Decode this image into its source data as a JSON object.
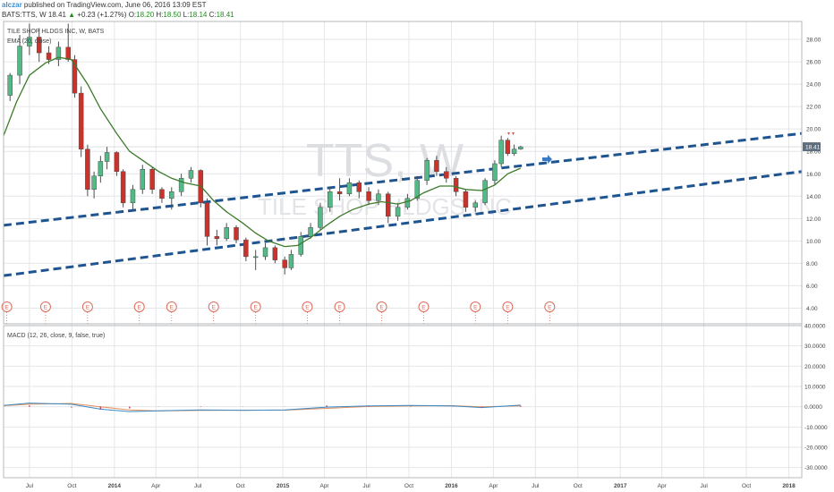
{
  "header": {
    "user": "alczar",
    "published_text": "published on TradingView.com, June 06, 2016 13:09 EST",
    "symbol": "BATS:TTS, W",
    "last": "18.41",
    "change_arrow": "▲",
    "change": "+0.23 (+1.27%)",
    "o_label": "O:",
    "o": "18.20",
    "h_label": "H:",
    "h": "18.50",
    "l_label": "L:",
    "l": "18.14",
    "c_label": "C:",
    "c": "18.41"
  },
  "main": {
    "series_title": "TILE SHOP HLDGS INC, W, BATS",
    "ema_label": "EMA (20, close)",
    "watermark_big": "TTS, W",
    "watermark_small": "TILE SHOP HLDGS INC",
    "price_label": "18.41",
    "earnings_label": "E",
    "colors": {
      "up": "#53b987",
      "down": "#c9332b",
      "wick": "#4d4d4d",
      "ema": "#3d7a2a",
      "channel": "#1e5590",
      "price_tag": "#5e6e7e",
      "macd": "#3a8ac4",
      "signal": "#e4905a",
      "hist": "#c0395b",
      "earnings": "#dd6b5a"
    }
  },
  "macd": {
    "label": "MACD (12, 26, close, 9, false, true)"
  },
  "chart_data": {
    "type": "candlestick",
    "title": "TILE SHOP HLDGS INC, W, BATS",
    "price_axis": {
      "ticks": [
        "28.00",
        "26.00",
        "24.00",
        "22.00",
        "20.00",
        "18.00",
        "16.00",
        "14.00",
        "12.00",
        "10.00",
        "8.00",
        "6.00",
        "4.00"
      ],
      "range": [
        2.6,
        29.6
      ]
    },
    "macd_axis": {
      "ticks": [
        "40.0000",
        "30.0000",
        "20.0000",
        "10.0000",
        "0.0000",
        "-10.0000",
        "-20.0000",
        "-30.0000"
      ],
      "range": [
        -35,
        40
      ]
    },
    "time_axis": {
      "labels": [
        "Jul",
        "Oct",
        "2014",
        "Apr",
        "Jul",
        "Oct",
        "2015",
        "Apr",
        "Jul",
        "Oct",
        "2016",
        "Apr",
        "Jul",
        "Oct",
        "2017",
        "Apr",
        "Jul",
        "Oct",
        "2018"
      ],
      "range": [
        "2013-05-06",
        "2018-01-29"
      ]
    },
    "candles": [
      {
        "d": "2013-05-20",
        "o": 23.0,
        "h": 25.0,
        "l": 22.5,
        "c": 24.8
      },
      {
        "d": "2013-06-10",
        "o": 24.8,
        "h": 28.4,
        "l": 24.0,
        "c": 27.4
      },
      {
        "d": "2013-07-01",
        "o": 27.4,
        "h": 29.4,
        "l": 26.6,
        "c": 28.2
      },
      {
        "d": "2013-07-22",
        "o": 28.2,
        "h": 29.0,
        "l": 26.0,
        "c": 26.8
      },
      {
        "d": "2013-08-12",
        "o": 26.8,
        "h": 27.4,
        "l": 25.8,
        "c": 26.2
      },
      {
        "d": "2013-09-02",
        "o": 26.2,
        "h": 27.8,
        "l": 25.6,
        "c": 27.3
      },
      {
        "d": "2013-09-23",
        "o": 27.3,
        "h": 29.4,
        "l": 26.0,
        "c": 26.2
      },
      {
        "d": "2013-10-07",
        "o": 26.2,
        "h": 26.6,
        "l": 22.8,
        "c": 23.2
      },
      {
        "d": "2013-10-21",
        "o": 23.2,
        "h": 23.8,
        "l": 17.5,
        "c": 18.2
      },
      {
        "d": "2013-11-04",
        "o": 18.2,
        "h": 18.6,
        "l": 14.0,
        "c": 14.6
      },
      {
        "d": "2013-11-18",
        "o": 14.6,
        "h": 16.2,
        "l": 13.8,
        "c": 15.8
      },
      {
        "d": "2013-12-02",
        "o": 15.8,
        "h": 17.6,
        "l": 15.2,
        "c": 17.1
      },
      {
        "d": "2013-12-16",
        "o": 17.1,
        "h": 18.4,
        "l": 16.4,
        "c": 17.9
      },
      {
        "d": "2014-01-06",
        "o": 17.9,
        "h": 18.0,
        "l": 15.8,
        "c": 16.2
      },
      {
        "d": "2014-01-20",
        "o": 16.2,
        "h": 16.4,
        "l": 13.0,
        "c": 13.4
      },
      {
        "d": "2014-02-10",
        "o": 13.4,
        "h": 15.0,
        "l": 12.8,
        "c": 14.6
      },
      {
        "d": "2014-03-03",
        "o": 14.6,
        "h": 16.8,
        "l": 14.2,
        "c": 16.4
      },
      {
        "d": "2014-03-24",
        "o": 16.4,
        "h": 16.6,
        "l": 14.2,
        "c": 14.6
      },
      {
        "d": "2014-04-14",
        "o": 14.6,
        "h": 14.8,
        "l": 13.4,
        "c": 13.8
      },
      {
        "d": "2014-05-05",
        "o": 13.8,
        "h": 14.8,
        "l": 12.8,
        "c": 14.4
      },
      {
        "d": "2014-05-26",
        "o": 14.4,
        "h": 16.0,
        "l": 14.0,
        "c": 15.6
      },
      {
        "d": "2014-06-16",
        "o": 15.6,
        "h": 16.6,
        "l": 15.2,
        "c": 16.3
      },
      {
        "d": "2014-07-07",
        "o": 16.3,
        "h": 16.4,
        "l": 13.0,
        "c": 13.4
      },
      {
        "d": "2014-07-21",
        "o": 13.4,
        "h": 13.8,
        "l": 9.6,
        "c": 10.4
      },
      {
        "d": "2014-08-11",
        "o": 10.4,
        "h": 11.0,
        "l": 9.6,
        "c": 10.2
      },
      {
        "d": "2014-09-01",
        "o": 10.2,
        "h": 11.6,
        "l": 10.0,
        "c": 11.2
      },
      {
        "d": "2014-09-22",
        "o": 11.2,
        "h": 11.4,
        "l": 9.8,
        "c": 10.1
      },
      {
        "d": "2014-10-13",
        "o": 10.1,
        "h": 10.3,
        "l": 8.2,
        "c": 8.6
      },
      {
        "d": "2014-11-03",
        "o": 8.6,
        "h": 9.2,
        "l": 7.4,
        "c": 8.6
      },
      {
        "d": "2014-11-24",
        "o": 8.6,
        "h": 9.8,
        "l": 8.3,
        "c": 9.4
      },
      {
        "d": "2014-12-15",
        "o": 9.4,
        "h": 9.6,
        "l": 8.0,
        "c": 8.3
      },
      {
        "d": "2015-01-05",
        "o": 8.3,
        "h": 8.6,
        "l": 7.0,
        "c": 7.6
      },
      {
        "d": "2015-01-19",
        "o": 7.6,
        "h": 9.2,
        "l": 7.4,
        "c": 8.8
      },
      {
        "d": "2015-02-09",
        "o": 8.8,
        "h": 10.8,
        "l": 8.6,
        "c": 10.4
      },
      {
        "d": "2015-03-02",
        "o": 10.4,
        "h": 11.6,
        "l": 10.2,
        "c": 11.2
      },
      {
        "d": "2015-03-23",
        "o": 11.2,
        "h": 13.4,
        "l": 11.0,
        "c": 13.0
      },
      {
        "d": "2015-04-13",
        "o": 13.0,
        "h": 14.8,
        "l": 12.6,
        "c": 14.4
      },
      {
        "d": "2015-05-04",
        "o": 14.4,
        "h": 15.6,
        "l": 13.6,
        "c": 14.2
      },
      {
        "d": "2015-05-25",
        "o": 14.2,
        "h": 15.6,
        "l": 14.0,
        "c": 15.2
      },
      {
        "d": "2015-06-15",
        "o": 15.2,
        "h": 15.4,
        "l": 13.8,
        "c": 14.4
      },
      {
        "d": "2015-07-06",
        "o": 14.4,
        "h": 14.8,
        "l": 13.2,
        "c": 13.6
      },
      {
        "d": "2015-07-27",
        "o": 13.6,
        "h": 14.6,
        "l": 13.2,
        "c": 14.2
      },
      {
        "d": "2015-08-17",
        "o": 14.2,
        "h": 14.4,
        "l": 11.6,
        "c": 12.2
      },
      {
        "d": "2015-09-07",
        "o": 12.2,
        "h": 13.4,
        "l": 11.8,
        "c": 13.0
      },
      {
        "d": "2015-09-28",
        "o": 13.0,
        "h": 14.2,
        "l": 12.8,
        "c": 13.8
      },
      {
        "d": "2015-10-19",
        "o": 13.8,
        "h": 15.8,
        "l": 13.6,
        "c": 15.4
      },
      {
        "d": "2015-11-09",
        "o": 15.4,
        "h": 17.4,
        "l": 15.0,
        "c": 17.2
      },
      {
        "d": "2015-11-30",
        "o": 17.2,
        "h": 17.6,
        "l": 15.8,
        "c": 16.2
      },
      {
        "d": "2015-12-21",
        "o": 16.2,
        "h": 16.6,
        "l": 15.2,
        "c": 15.6
      },
      {
        "d": "2016-01-11",
        "o": 15.6,
        "h": 15.8,
        "l": 14.0,
        "c": 14.4
      },
      {
        "d": "2016-02-01",
        "o": 14.4,
        "h": 14.6,
        "l": 12.6,
        "c": 13.0
      },
      {
        "d": "2016-02-22",
        "o": 13.0,
        "h": 13.6,
        "l": 12.6,
        "c": 13.4
      },
      {
        "d": "2016-03-14",
        "o": 13.4,
        "h": 15.6,
        "l": 13.2,
        "c": 15.4
      },
      {
        "d": "2016-04-04",
        "o": 15.4,
        "h": 17.2,
        "l": 15.0,
        "c": 16.9
      },
      {
        "d": "2016-04-18",
        "o": 16.9,
        "h": 19.4,
        "l": 16.6,
        "c": 19.0
      },
      {
        "d": "2016-05-02",
        "o": 19.0,
        "h": 19.2,
        "l": 17.6,
        "c": 17.8
      },
      {
        "d": "2016-05-16",
        "o": 17.8,
        "h": 18.6,
        "l": 17.6,
        "c": 18.2
      },
      {
        "d": "2016-05-30",
        "o": 18.2,
        "h": 18.5,
        "l": 18.14,
        "c": 18.41
      }
    ],
    "ema_20": [
      {
        "d": "2013-05-06",
        "v": 19.4
      },
      {
        "d": "2013-06-03",
        "v": 22.4
      },
      {
        "d": "2013-07-01",
        "v": 24.8
      },
      {
        "d": "2013-08-05",
        "v": 25.9
      },
      {
        "d": "2013-09-02",
        "v": 26.4
      },
      {
        "d": "2013-09-30",
        "v": 26.2
      },
      {
        "d": "2013-11-04",
        "v": 24.0
      },
      {
        "d": "2013-12-02",
        "v": 21.8
      },
      {
        "d": "2014-01-06",
        "v": 19.6
      },
      {
        "d": "2014-02-03",
        "v": 18.0
      },
      {
        "d": "2014-03-03",
        "v": 17.2
      },
      {
        "d": "2014-04-07",
        "v": 16.2
      },
      {
        "d": "2014-05-05",
        "v": 15.6
      },
      {
        "d": "2014-06-02",
        "v": 15.2
      },
      {
        "d": "2014-07-07",
        "v": 14.9
      },
      {
        "d": "2014-08-04",
        "v": 13.6
      },
      {
        "d": "2014-09-01",
        "v": 12.6
      },
      {
        "d": "2014-10-06",
        "v": 11.6
      },
      {
        "d": "2014-11-03",
        "v": 10.7
      },
      {
        "d": "2014-12-01",
        "v": 10.0
      },
      {
        "d": "2015-01-05",
        "v": 9.5
      },
      {
        "d": "2015-02-02",
        "v": 9.6
      },
      {
        "d": "2015-03-02",
        "v": 10.3
      },
      {
        "d": "2015-04-06",
        "v": 11.4
      },
      {
        "d": "2015-05-04",
        "v": 12.2
      },
      {
        "d": "2015-06-01",
        "v": 12.8
      },
      {
        "d": "2015-07-06",
        "v": 13.3
      },
      {
        "d": "2015-08-03",
        "v": 13.5
      },
      {
        "d": "2015-09-07",
        "v": 13.3
      },
      {
        "d": "2015-10-05",
        "v": 13.6
      },
      {
        "d": "2015-11-02",
        "v": 14.3
      },
      {
        "d": "2015-12-07",
        "v": 14.9
      },
      {
        "d": "2016-01-04",
        "v": 14.9
      },
      {
        "d": "2016-02-01",
        "v": 14.6
      },
      {
        "d": "2016-03-07",
        "v": 14.5
      },
      {
        "d": "2016-04-04",
        "v": 15.0
      },
      {
        "d": "2016-05-02",
        "v": 16.0
      },
      {
        "d": "2016-05-30",
        "v": 16.5
      }
    ],
    "channel_lines": [
      {
        "from": {
          "d": "2013-05-06",
          "v": 11.4
        },
        "to": {
          "d": "2018-01-29",
          "v": 19.6
        }
      },
      {
        "from": {
          "d": "2013-05-06",
          "v": 6.9
        },
        "to": {
          "d": "2018-01-29",
          "v": 16.2
        }
      }
    ],
    "earnings_dates": [
      "2013-05-13",
      "2013-08-05",
      "2013-11-04",
      "2014-02-24",
      "2014-05-05",
      "2014-08-04",
      "2014-11-03",
      "2015-02-23",
      "2015-05-04",
      "2015-08-03",
      "2015-11-02",
      "2016-02-22",
      "2016-05-02",
      "2016-08-01"
    ],
    "macd": [
      {
        "d": "2013-05-06",
        "m": 0.6,
        "s": 0.5
      },
      {
        "d": "2013-07-01",
        "m": 1.8,
        "s": 1.2
      },
      {
        "d": "2013-09-30",
        "m": 1.2,
        "s": 1.6
      },
      {
        "d": "2013-12-02",
        "m": -1.2,
        "s": 0.0
      },
      {
        "d": "2014-02-03",
        "m": -2.4,
        "s": -1.6
      },
      {
        "d": "2014-04-07",
        "m": -2.0,
        "s": -2.1
      },
      {
        "d": "2014-07-07",
        "m": -1.6,
        "s": -1.8
      },
      {
        "d": "2014-10-06",
        "m": -1.8,
        "s": -1.7
      },
      {
        "d": "2015-01-05",
        "m": -1.6,
        "s": -1.7
      },
      {
        "d": "2015-04-06",
        "m": -0.2,
        "s": -0.8
      },
      {
        "d": "2015-07-06",
        "m": 0.4,
        "s": 0.1
      },
      {
        "d": "2015-10-05",
        "m": 0.6,
        "s": 0.4
      },
      {
        "d": "2016-01-04",
        "m": 0.4,
        "s": 0.5
      },
      {
        "d": "2016-03-07",
        "m": -0.4,
        "s": 0.0
      },
      {
        "d": "2016-05-30",
        "m": 0.8,
        "s": 0.4
      }
    ]
  }
}
